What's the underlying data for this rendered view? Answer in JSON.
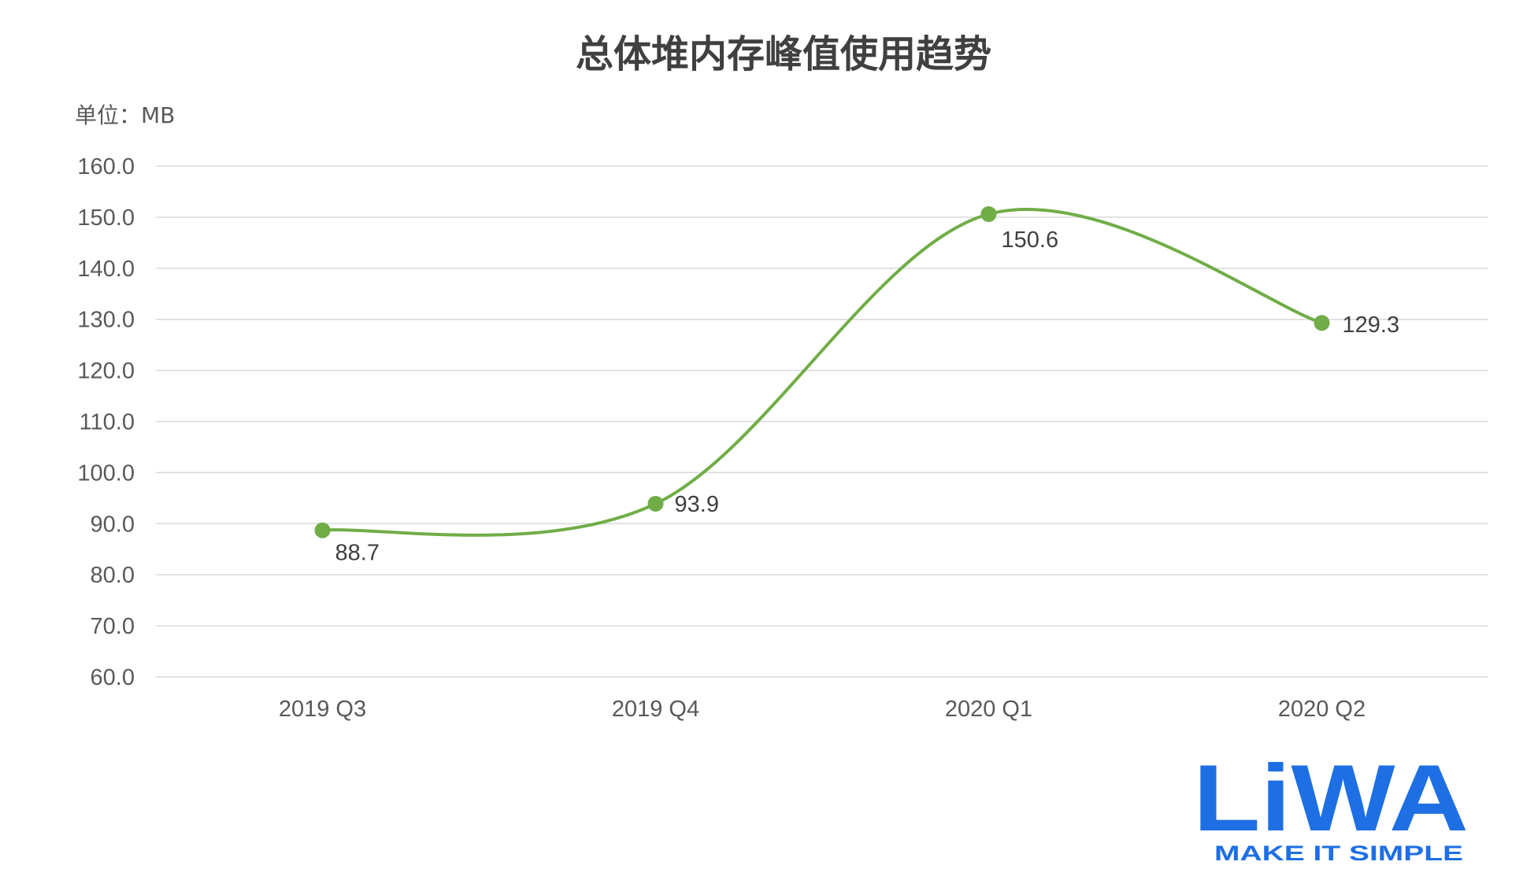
{
  "chart_data": {
    "type": "line",
    "title": "总体堆内存峰值使用趋势",
    "unit_label": "单位：MB",
    "categories": [
      "2019 Q3",
      "2019 Q4",
      "2020 Q1",
      "2020 Q2"
    ],
    "series": [
      {
        "values": [
          88.7,
          93.9,
          150.6,
          129.3
        ],
        "color": "#70ad47",
        "smooth": true
      }
    ],
    "data_labels": [
      "88.7",
      "93.9",
      "150.6",
      "129.3"
    ],
    "ylim": [
      60,
      160
    ],
    "yticks": [
      "60.0",
      "70.0",
      "80.0",
      "90.0",
      "100.0",
      "110.0",
      "120.0",
      "130.0",
      "140.0",
      "150.0",
      "160.0"
    ],
    "grid": true,
    "legend": "none"
  },
  "logo": {
    "text": "LiWA",
    "tagline": "MAKE IT SIMPLE",
    "color": "#1e6fe3",
    "accent": "#35b4f0"
  }
}
